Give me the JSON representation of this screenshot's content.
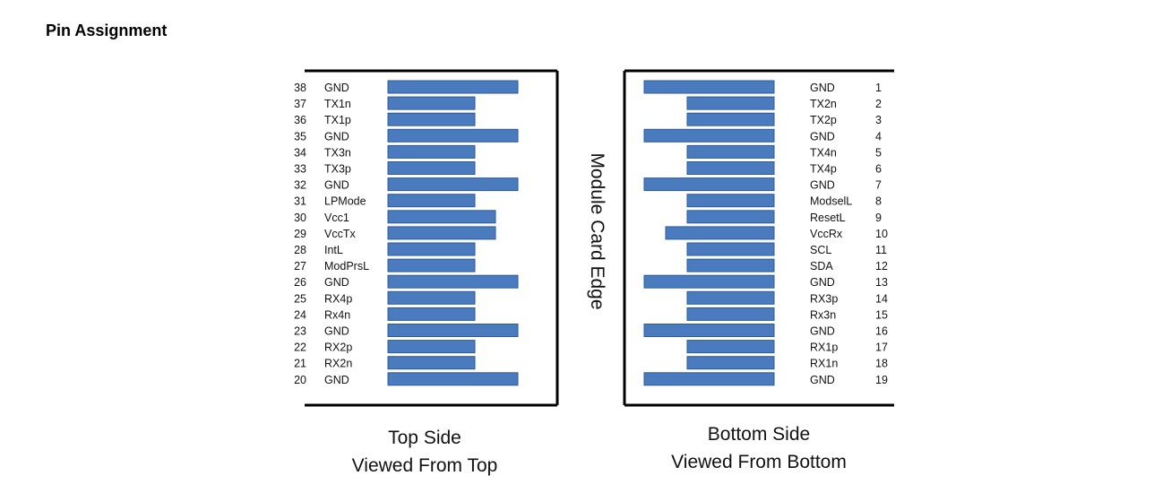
{
  "heading": "Pin Assignment",
  "colors": {
    "pad": "#4a7bbf",
    "pad_stroke": "#2e5a96",
    "frame": "#000000",
    "text": "#111111"
  },
  "edge_label": "Module Card Edge",
  "top_side": {
    "caption_line1": "Top Side",
    "caption_line2": "Viewed From Top",
    "pins": [
      {
        "num": "38",
        "name": "GND",
        "pad": "long"
      },
      {
        "num": "37",
        "name": "TX1n",
        "pad": "short"
      },
      {
        "num": "36",
        "name": "TX1p",
        "pad": "short"
      },
      {
        "num": "35",
        "name": "GND",
        "pad": "long"
      },
      {
        "num": "34",
        "name": "TX3n",
        "pad": "short"
      },
      {
        "num": "33",
        "name": "TX3p",
        "pad": "short"
      },
      {
        "num": "32",
        "name": "GND",
        "pad": "long"
      },
      {
        "num": "31",
        "name": "LPMode",
        "pad": "short"
      },
      {
        "num": "30",
        "name": "Vcc1",
        "pad": "medium"
      },
      {
        "num": "29",
        "name": "VccTx",
        "pad": "medium"
      },
      {
        "num": "28",
        "name": "IntL",
        "pad": "short"
      },
      {
        "num": "27",
        "name": "ModPrsL",
        "pad": "short"
      },
      {
        "num": "26",
        "name": "GND",
        "pad": "long"
      },
      {
        "num": "25",
        "name": "RX4p",
        "pad": "short"
      },
      {
        "num": "24",
        "name": "Rx4n",
        "pad": "short"
      },
      {
        "num": "23",
        "name": "GND",
        "pad": "long"
      },
      {
        "num": "22",
        "name": "RX2p",
        "pad": "short"
      },
      {
        "num": "21",
        "name": "RX2n",
        "pad": "short"
      },
      {
        "num": "20",
        "name": "GND",
        "pad": "long"
      }
    ]
  },
  "bottom_side": {
    "caption_line1": "Bottom Side",
    "caption_line2": "Viewed From Bottom",
    "pins": [
      {
        "num": "1",
        "name": "GND",
        "pad": "long"
      },
      {
        "num": "2",
        "name": "TX2n",
        "pad": "short"
      },
      {
        "num": "3",
        "name": "TX2p",
        "pad": "short"
      },
      {
        "num": "4",
        "name": "GND",
        "pad": "long"
      },
      {
        "num": "5",
        "name": "TX4n",
        "pad": "short"
      },
      {
        "num": "6",
        "name": "TX4p",
        "pad": "short"
      },
      {
        "num": "7",
        "name": "GND",
        "pad": "long"
      },
      {
        "num": "8",
        "name": "ModselL",
        "pad": "short"
      },
      {
        "num": "9",
        "name": "ResetL",
        "pad": "short"
      },
      {
        "num": "10",
        "name": "VccRx",
        "pad": "medium"
      },
      {
        "num": "11",
        "name": "SCL",
        "pad": "short"
      },
      {
        "num": "12",
        "name": "SDA",
        "pad": "short"
      },
      {
        "num": "13",
        "name": "GND",
        "pad": "long"
      },
      {
        "num": "14",
        "name": "RX3p",
        "pad": "short"
      },
      {
        "num": "15",
        "name": "Rx3n",
        "pad": "short"
      },
      {
        "num": "16",
        "name": "GND",
        "pad": "long"
      },
      {
        "num": "17",
        "name": "RX1p",
        "pad": "short"
      },
      {
        "num": "18",
        "name": "RX1n",
        "pad": "short"
      },
      {
        "num": "19",
        "name": "GND",
        "pad": "long"
      }
    ]
  }
}
